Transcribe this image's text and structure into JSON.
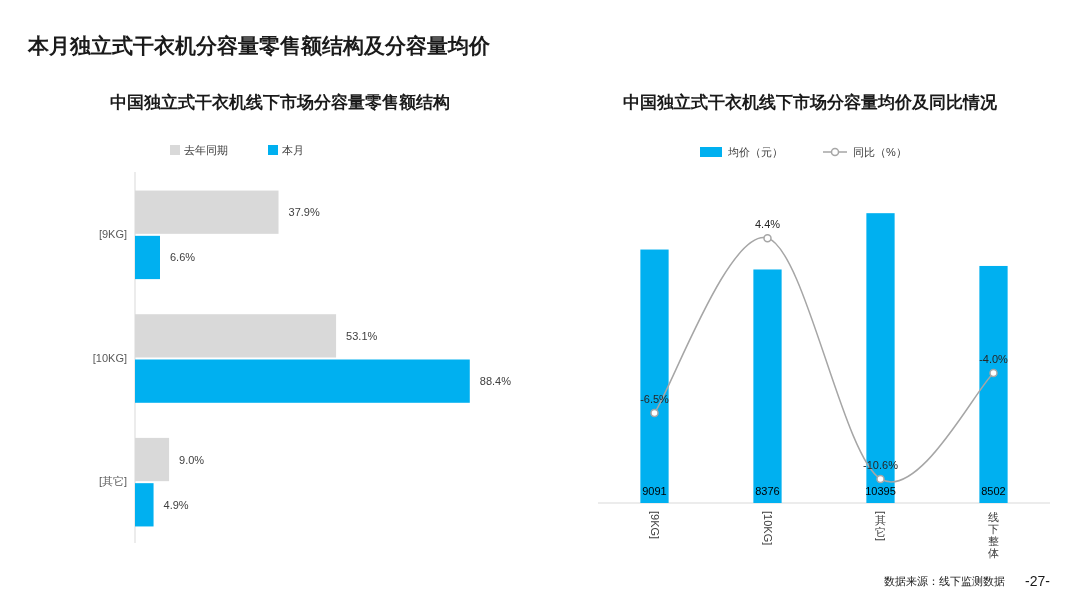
{
  "chart_data": [
    {
      "type": "bar",
      "orientation": "horizontal",
      "title": "中国独立式干衣机线下市场分容量零售额结构",
      "categories": [
        "[9KG]",
        "[10KG]",
        "[其它]"
      ],
      "legend": "top",
      "series": [
        {
          "name": "去年同期",
          "color": "#d9d9d9",
          "values": [
            37.9,
            53.1,
            9.0
          ],
          "value_labels": [
            "37.9%",
            "53.1%",
            "9.0%"
          ]
        },
        {
          "name": "本月",
          "color": "#00b0f0",
          "values": [
            6.6,
            88.4,
            4.9
          ],
          "value_labels": [
            "6.6%",
            "88.4%",
            "4.9%"
          ]
        }
      ],
      "annotations": [
        "本月独立式干衣机分容量零售额结构及分容量均价"
      ]
    },
    {
      "type": "bar",
      "title": "中国独立式干衣机线下市场分容量均价及同比情况",
      "categories": [
        "[9KG]",
        "[10KG]",
        "[其它]",
        "线下整体"
      ],
      "legend": "top",
      "series": [
        {
          "name": "均价（元）",
          "color": "#00b0f0",
          "values": [
            9091,
            8376,
            10395,
            8502
          ],
          "value_labels": [
            "9091",
            "8376",
            "10395",
            "8502"
          ]
        },
        {
          "name": "同比（%）",
          "type": "line",
          "axis": "y2",
          "marker": "circle",
          "color": "#a6a6a6",
          "values": [
            -6.5,
            4.4,
            -10.6,
            -4.0
          ],
          "value_labels": [
            "-6.5%",
            "4.4%",
            "-10.6%",
            "-4.0%"
          ]
        }
      ],
      "annotations": [
        "数据来源：线下监测数据",
        "-27-"
      ]
    }
  ]
}
